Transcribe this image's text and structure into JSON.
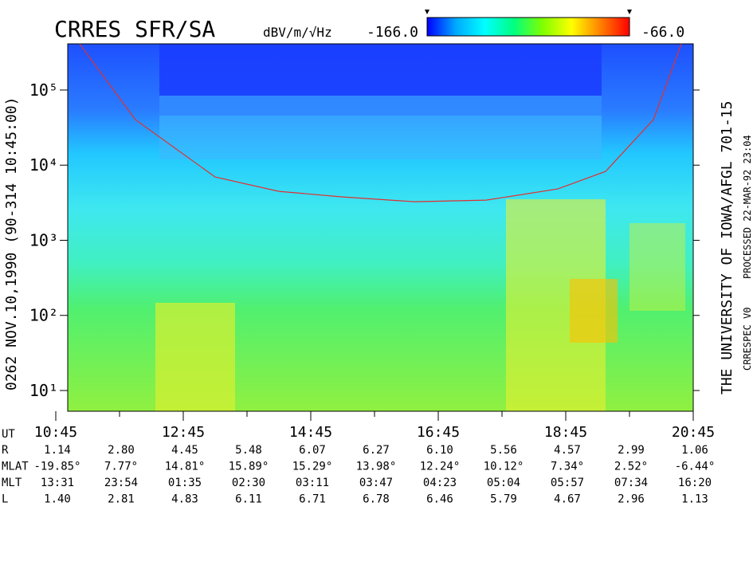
{
  "chart_data": {
    "type": "spectrogram",
    "title": "CRRES SFR/SA",
    "ylabel": "0262   NOV.10,1990  (90-314 10:45:00)",
    "xlabel": "UT",
    "colorbar": {
      "label": "dBV/m/√Hz",
      "clim": [
        -166,
        -66
      ],
      "ticks": [
        {
          "value": -166,
          "label": "-166.0"
        },
        {
          "value": -66,
          "label": "-66.0"
        }
      ],
      "colors": [
        "#0000ff",
        "#00aaff",
        "#00ffff",
        "#00ff80",
        "#80ff00",
        "#ffff00",
        "#ff8000",
        "#ff0000"
      ]
    },
    "log_y": true,
    "ylim": [
      5.3,
      412000
    ],
    "yticks": [
      {
        "value": 10,
        "label": "10¹"
      },
      {
        "value": 100,
        "label": "10²"
      },
      {
        "value": 1000,
        "label": "10³"
      },
      {
        "value": 10000,
        "label": "10⁴"
      },
      {
        "value": 100000,
        "label": "10⁵"
      }
    ],
    "xlim": [
      10.75,
      20.75
    ],
    "xticks": [
      {
        "value": 10.75,
        "label": "10:45"
      },
      {
        "value": 12.75,
        "label": "12:45"
      },
      {
        "value": 14.75,
        "label": "14:45"
      },
      {
        "value": 16.75,
        "label": "16:45"
      },
      {
        "value": 18.75,
        "label": "18:45"
      },
      {
        "value": 20.75,
        "label": "20:45"
      }
    ],
    "xminorticks": [
      11.75,
      13.75,
      15.75,
      17.75,
      19.75
    ],
    "curve": {
      "color": "#e03030",
      "x": [
        11.125,
        12.0,
        13.25,
        14.25,
        15.25,
        16.375,
        17.5,
        18.625,
        19.375,
        20.125,
        20.5625
      ],
      "values": [
        410000,
        40300,
        6950,
        4480,
        3780,
        3260,
        3420,
        4820,
        8240,
        40300,
        410000
      ]
    },
    "ephemeris": [
      {
        "name": "R",
        "values": [
          "1.14",
          "2.80",
          "4.45",
          "5.48",
          "6.07",
          "6.27",
          "6.10",
          "5.56",
          "4.57",
          "2.99",
          "1.06"
        ]
      },
      {
        "name": "MLAT",
        "values": [
          "-19.85°",
          "7.77°",
          "14.81°",
          "15.89°",
          "15.29°",
          "13.98°",
          "12.24°",
          "10.12°",
          "7.34°",
          "2.52°",
          "-6.44°"
        ]
      },
      {
        "name": "MLT",
        "values": [
          "13:31",
          "23:54",
          "01:35",
          "02:30",
          "03:11",
          "03:47",
          "04:23",
          "05:04",
          "05:57",
          "07:34",
          "16:20"
        ]
      },
      {
        "name": "L",
        "values": [
          "1.40",
          "2.81",
          "4.83",
          "6.11",
          "6.71",
          "6.78",
          "6.46",
          "5.79",
          "4.67",
          "2.96",
          "1.13"
        ]
      }
    ],
    "side_texts": [
      "THE UNIVERSITY OF IOWA/AFGL  701-15",
      "PROCESSED 22-MAR-92  23:04",
      "CRRESPEC V0"
    ]
  }
}
